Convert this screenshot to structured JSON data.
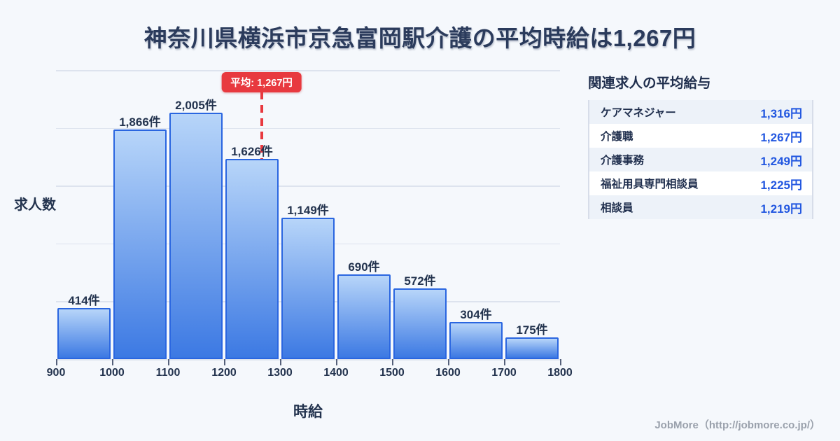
{
  "title": "神奈川県横浜市京急富岡駅介護の平均時給は1,267円",
  "colors": {
    "background": "#f5f8fc",
    "bar_fill_top": "#b7d5f9",
    "bar_fill_bottom": "#3c79e3",
    "bar_border": "#2a66e0",
    "average_red": "#e8393f",
    "value_blue": "#2257e0",
    "text_dark": "#24344f",
    "gridline": "#dde3ee"
  },
  "chart_data": {
    "type": "bar",
    "title": "神奈川県横浜市京急富岡駅介護の平均時給は1,267円",
    "xlabel": "時給",
    "ylabel": "求人数",
    "x_ticks": [
      900,
      1000,
      1100,
      1200,
      1300,
      1400,
      1500,
      1600,
      1700,
      1800
    ],
    "bins": [
      {
        "range": [
          900,
          1000
        ],
        "count": 414,
        "label": "414件"
      },
      {
        "range": [
          1000,
          1100
        ],
        "count": 1866,
        "label": "1,866件"
      },
      {
        "range": [
          1100,
          1200
        ],
        "count": 2005,
        "label": "2,005件"
      },
      {
        "range": [
          1200,
          1300
        ],
        "count": 1626,
        "label": "1,626件"
      },
      {
        "range": [
          1300,
          1400
        ],
        "count": 1149,
        "label": "1,149件"
      },
      {
        "range": [
          1400,
          1500
        ],
        "count": 690,
        "label": "690件"
      },
      {
        "range": [
          1500,
          1600
        ],
        "count": 572,
        "label": "572件"
      },
      {
        "range": [
          1600,
          1700
        ],
        "count": 304,
        "label": "304件"
      },
      {
        "range": [
          1700,
          1800
        ],
        "count": 175,
        "label": "175件"
      }
    ],
    "average_line": {
      "value": 1267,
      "label": "平均: 1,267円"
    },
    "xlim": [
      900,
      1800
    ],
    "ylim": [
      0,
      2350
    ],
    "grid": "horizontal",
    "legend": "none"
  },
  "related_jobs": {
    "heading": "関連求人の平均給与",
    "rows": [
      {
        "name": "ケアマネジャー",
        "value": "1,316円"
      },
      {
        "name": "介護職",
        "value": "1,267円"
      },
      {
        "name": "介護事務",
        "value": "1,249円"
      },
      {
        "name": "福祉用具専門相談員",
        "value": "1,225円"
      },
      {
        "name": "相談員",
        "value": "1,219円"
      }
    ]
  },
  "footer": {
    "credit": "JobMore（http://jobmore.co.jp/）"
  }
}
